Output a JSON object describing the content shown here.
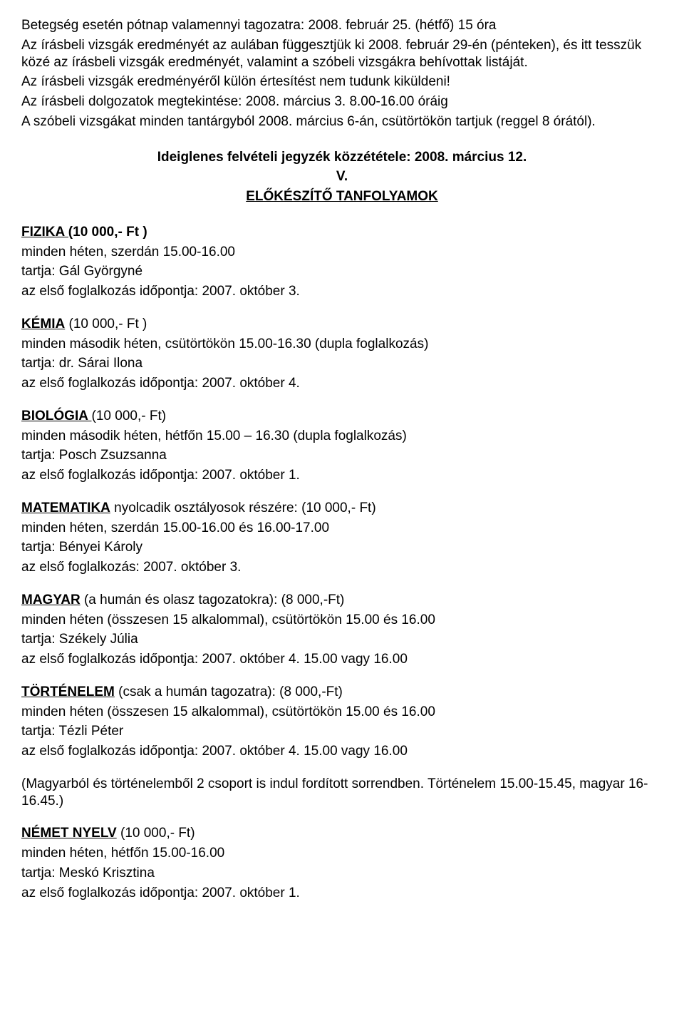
{
  "intro": {
    "l1": "Betegség esetén pótnap valamennyi tagozatra:  2008. február 25. (hétfő)  15 óra",
    "l2": "Az írásbeli vizsgák eredményét az aulában függesztjük ki  2008. február 29-én (pénteken), és itt tesszük közé az írásbeli vizsgák eredményét, valamint a szóbeli vizsgákra behívottak listáját.",
    "l3": "Az írásbeli vizsgák eredményéről külön értesítést nem tudunk kiküldeni!",
    "l4": "Az írásbeli dolgozatok megtekintése: 2008. március 3.  8.00-16.00 óráig",
    "l5": "A szóbeli vizsgákat minden tantárgyból 2008. március  6-án, csütörtökön tartjuk (reggel 8 órától)."
  },
  "section_header": {
    "l1": "Ideiglenes felvételi jegyzék közzététele: 2008. március 12.",
    "l2": "V.",
    "l3": "ELŐKÉSZÍTŐ TANFOLYAMOK"
  },
  "fizika": {
    "title": "FIZIKA (",
    "rest_bold": "10 000,- Ft )",
    "l2": "minden héten, szerdán 15.00-16.00",
    "l3": "tartja: Gál Györgyné",
    "l4": "az első foglalkozás időpontja: 2007. október 3."
  },
  "kemia": {
    "title": "KÉMIA",
    "rest": "  (10 000,- Ft )",
    "l2": "minden második héten, csütörtökön 15.00-16.30 (dupla foglalkozás)",
    "l3": "tartja: dr. Sárai Ilona",
    "l4": "az első foglalkozás időpontja: 2007. október  4."
  },
  "biologia": {
    "title": "BIOLÓGIA ",
    "rest": "  (10 000,- Ft)",
    "l2": "minden második héten, hétfőn 15.00 – 16.30 (dupla foglalkozás)",
    "l3": "tartja: Posch Zsuzsanna",
    "l4": "az első foglalkozás időpontja: 2007. október 1."
  },
  "matematika": {
    "title": "MATEMATIKA",
    "rest": " nyolcadik osztályosok részére:  (10 000,- Ft)",
    "l2": "minden héten, szerdán 15.00-16.00 és 16.00-17.00",
    "l3": "tartja: Bényei Károly",
    "l4": "az első foglalkozás: 2007. október 3."
  },
  "magyar": {
    "title": "MAGYAR",
    "rest": " (a humán és olasz tagozatokra):  (8 000,-Ft)",
    "l2": "minden héten (összesen 15 alkalommal), csütörtökön 15.00 és 16.00",
    "l3": "tartja: Székely Júlia",
    "l4": "az első foglalkozás időpontja: 2007. október 4.  15.00 vagy 16.00"
  },
  "tortenelem": {
    "title": "TÖRTÉNELEM",
    "rest": " (csak a humán tagozatra):  (8 000,-Ft)",
    "l2": "minden héten (összesen 15 alkalommal), csütörtökön 15.00 és 16.00",
    "l3": "tartja: Tézli Péter",
    "l4": "az első foglalkozás időpontja: 2007. október 4.  15.00 vagy 16.00"
  },
  "note": "(Magyarból és történelemből 2 csoport is indul fordított sorrendben.  Történelem 15.00-15.45, magyar 16-16.45.)",
  "nemet": {
    "title": "NÉMET NYELV",
    "rest": "  (10 000,- Ft)",
    "l2": "minden héten, hétfőn 15.00-16.00",
    "l3": "tartja: Meskó Krisztina",
    "l4": "az első foglalkozás időpontja: 2007. október 1."
  }
}
